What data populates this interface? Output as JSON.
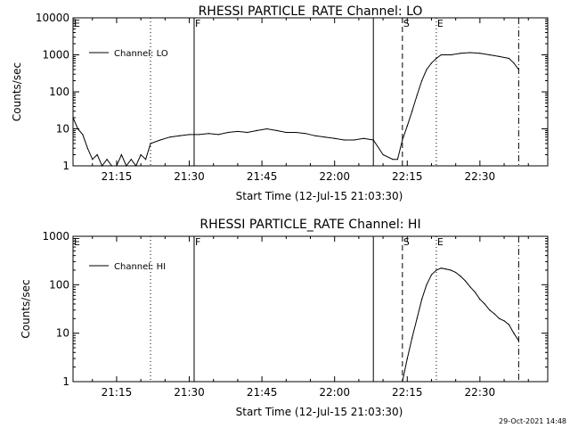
{
  "footer_date": "29-Oct-2021 14:48",
  "chart_data": [
    {
      "type": "line",
      "title": "RHESSI PARTICLE_RATE Channel: LO",
      "xlabel": "Start Time (12-Jul-15 21:03:30)",
      "ylabel": "Counts/sec",
      "yscale": "log",
      "ylim": [
        1,
        10000
      ],
      "xlim": [
        "21:06",
        "22:44"
      ],
      "xticks": [
        "21:15",
        "21:30",
        "21:45",
        "22:00",
        "22:15",
        "22:30"
      ],
      "yticks": [
        "1",
        "10",
        "100",
        "1000",
        "10000"
      ],
      "legend": {
        "position": "top-left",
        "label": "Channel: LO"
      },
      "markers": [
        {
          "time": "21:06",
          "style": "dotted",
          "label": "E"
        },
        {
          "time": "21:22",
          "style": "dotted",
          "label": ""
        },
        {
          "time": "21:31",
          "style": "solid",
          "label": "F"
        },
        {
          "time": "22:08",
          "style": "solid",
          "label": ""
        },
        {
          "time": "22:14",
          "style": "dashed",
          "label": "S"
        },
        {
          "time": "22:21",
          "style": "dotted",
          "label": "E"
        },
        {
          "time": "22:38",
          "style": "dashdot",
          "label": ""
        }
      ],
      "series": [
        {
          "name": "Channel: LO",
          "x": [
            "21:06",
            "21:07",
            "21:08",
            "21:09",
            "21:10",
            "21:11",
            "21:12",
            "21:13",
            "21:14",
            "21:15",
            "21:16",
            "21:17",
            "21:18",
            "21:19",
            "21:20",
            "21:21",
            "21:22",
            "21:24",
            "21:26",
            "21:28",
            "21:30",
            "21:32",
            "21:34",
            "21:36",
            "21:38",
            "21:40",
            "21:42",
            "21:44",
            "21:46",
            "21:48",
            "21:50",
            "21:52",
            "21:54",
            "21:56",
            "21:58",
            "22:00",
            "22:02",
            "22:04",
            "22:06",
            "22:08",
            "22:10",
            "22:12",
            "22:13",
            "22:14",
            "22:15",
            "22:16",
            "22:17",
            "22:18",
            "22:19",
            "22:20",
            "22:21",
            "22:22",
            "22:23",
            "22:24",
            "22:26",
            "22:28",
            "22:30",
            "22:32",
            "22:34",
            "22:36",
            "22:37",
            "22:38"
          ],
          "y": [
            20,
            10,
            7,
            3,
            1.5,
            2,
            1,
            1.5,
            1,
            1,
            2,
            1,
            1.5,
            1,
            2,
            1.5,
            4,
            5,
            6,
            6.5,
            7,
            7,
            7.5,
            7,
            8,
            8.5,
            8,
            9,
            10,
            9,
            8,
            8,
            7.5,
            6.5,
            6,
            5.5,
            5,
            5,
            5.5,
            5,
            2,
            1.5,
            1.5,
            5,
            12,
            30,
            80,
            200,
            400,
            600,
            800,
            1000,
            1000,
            1000,
            1100,
            1150,
            1100,
            1000,
            900,
            800,
            600,
            400
          ]
        }
      ]
    },
    {
      "type": "line",
      "title": "RHESSI PARTICLE_RATE Channel: HI",
      "xlabel": "Start Time (12-Jul-15 21:03:30)",
      "ylabel": "Counts/sec",
      "yscale": "log",
      "ylim": [
        1,
        1000
      ],
      "xlim": [
        "21:06",
        "22:44"
      ],
      "xticks": [
        "21:15",
        "21:30",
        "21:45",
        "22:00",
        "22:15",
        "22:30"
      ],
      "yticks": [
        "1",
        "10",
        "100",
        "1000"
      ],
      "legend": {
        "position": "top-left",
        "label": "Channel: HI"
      },
      "markers": [
        {
          "time": "21:06",
          "style": "dotted",
          "label": "E"
        },
        {
          "time": "21:22",
          "style": "dotted",
          "label": ""
        },
        {
          "time": "21:31",
          "style": "solid",
          "label": "F"
        },
        {
          "time": "22:08",
          "style": "solid",
          "label": ""
        },
        {
          "time": "22:14",
          "style": "dashed",
          "label": "S"
        },
        {
          "time": "22:21",
          "style": "dotted",
          "label": "E"
        },
        {
          "time": "22:38",
          "style": "dashdot",
          "label": ""
        }
      ],
      "series": [
        {
          "name": "Channel: HI",
          "x": [
            "22:14",
            "22:15",
            "22:16",
            "22:17",
            "22:18",
            "22:19",
            "22:20",
            "22:21",
            "22:22",
            "22:23",
            "22:24",
            "22:25",
            "22:26",
            "22:27",
            "22:28",
            "22:29",
            "22:30",
            "22:31",
            "22:32",
            "22:33",
            "22:34",
            "22:35",
            "22:36",
            "22:37",
            "22:38"
          ],
          "y": [
            1,
            3,
            8,
            20,
            50,
            100,
            160,
            200,
            220,
            210,
            200,
            180,
            150,
            120,
            90,
            70,
            50,
            40,
            30,
            25,
            20,
            18,
            15,
            10,
            7
          ]
        }
      ]
    }
  ]
}
